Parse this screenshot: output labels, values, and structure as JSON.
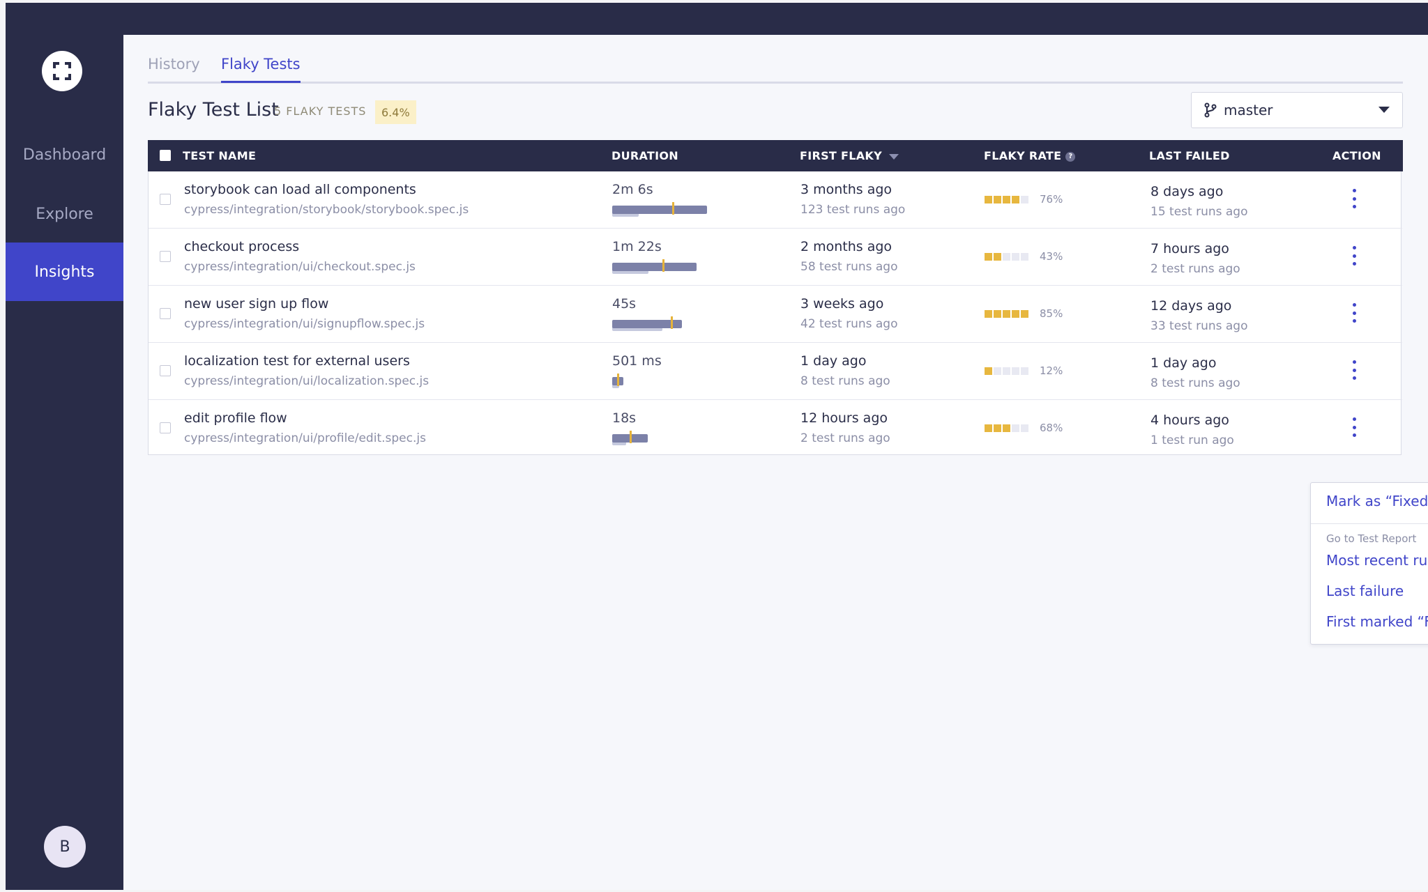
{
  "sidebar": {
    "logo_icon": "cypress-logo-icon",
    "items": [
      {
        "label": "Dashboard",
        "active": false
      },
      {
        "label": "Explore",
        "active": false
      },
      {
        "label": "Insights",
        "active": true
      }
    ],
    "avatar_initial": "B"
  },
  "tabs": [
    {
      "label": "History",
      "active": false
    },
    {
      "label": "Flaky Tests",
      "active": true
    }
  ],
  "list": {
    "title": "Flaky Test List",
    "count_label": "5 FLAKY TESTS",
    "percent_badge": "6.4%"
  },
  "branch_select": {
    "icon": "git-branch-icon",
    "value": "master"
  },
  "table": {
    "headers": {
      "test_name": "TEST NAME",
      "duration": "DURATION",
      "first_flaky": "FIRST FLAKY",
      "flaky_rate": "FLAKY RATE",
      "last_failed": "LAST FAILED",
      "action": "ACTION"
    },
    "help_icon_glyph": "?",
    "rows": [
      {
        "name": "storybook can load all components",
        "path": "cypress/integration/storybook/storybook.spec.js",
        "duration": "2m 6s",
        "first_flaky": "3 months ago",
        "first_flaky_runs": "123 test runs ago",
        "flaky_rate_label": "76%",
        "flaky_rate_boxes": 4,
        "last_failed": "8 days ago",
        "last_failed_runs": "15 test runs ago"
      },
      {
        "name": "checkout process",
        "path": "cypress/integration/ui/checkout.spec.js",
        "duration": "1m 22s",
        "first_flaky": "2 months ago",
        "first_flaky_runs": "58 test runs ago",
        "flaky_rate_label": "43%",
        "flaky_rate_boxes": 2,
        "last_failed": "7 hours ago",
        "last_failed_runs": "2 test runs ago"
      },
      {
        "name": "new user sign up flow",
        "path": "cypress/integration/ui/signupflow.spec.js",
        "duration": "45s",
        "first_flaky": "3 weeks ago",
        "first_flaky_runs": "42 test runs ago",
        "flaky_rate_label": "85%",
        "flaky_rate_boxes": 5,
        "last_failed": "12 days ago",
        "last_failed_runs": "33 test runs ago"
      },
      {
        "name": "localization test for external users",
        "path": "cypress/integration/ui/localization.spec.js",
        "duration": "501 ms",
        "first_flaky": "1 day ago",
        "first_flaky_runs": "8 test runs ago",
        "flaky_rate_label": "12%",
        "flaky_rate_boxes": 1,
        "last_failed": "1 day ago",
        "last_failed_runs": "8 test runs ago"
      },
      {
        "name": "edit profile flow",
        "path": "cypress/integration/ui/profile/edit.spec.js",
        "duration": "18s",
        "first_flaky": "12 hours ago",
        "first_flaky_runs": "2 test runs ago",
        "flaky_rate_label": "68%",
        "flaky_rate_boxes": 3,
        "last_failed": "4 hours ago",
        "last_failed_runs": "1 test run ago"
      }
    ]
  },
  "action_menu": {
    "mark_fixed": "Mark as “Fixed Flaky”",
    "section_header": "Go to Test Report",
    "most_recent": "Most recent run",
    "last_failure": "Last failure",
    "first_marked": "First marked “Flaky”"
  },
  "colors": {
    "nav_bg": "#292c48",
    "accent": "#4045c9",
    "flaky_yellow": "#e7b73f",
    "badge_bg": "#fbf0c8"
  }
}
